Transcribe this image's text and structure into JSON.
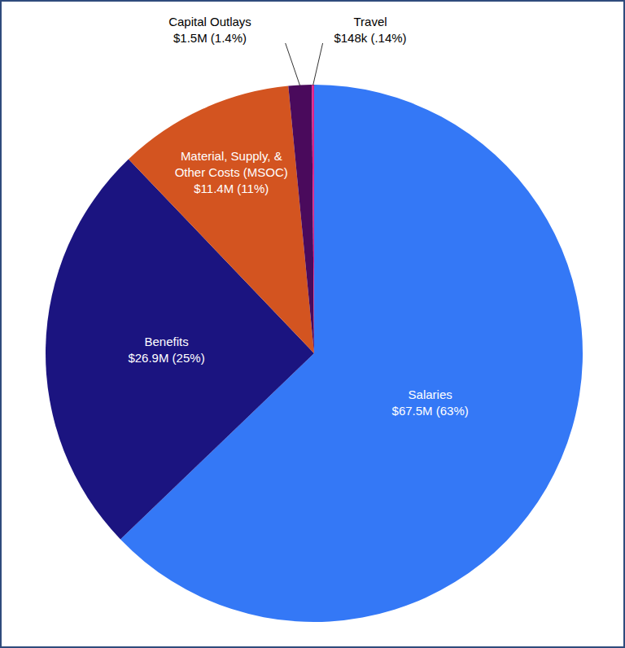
{
  "chart_data": {
    "type": "pie",
    "categories": [
      "Salaries",
      "Benefits",
      "Material, Supply, & Other Costs (MSOC)",
      "Capital Outlays",
      "Travel"
    ],
    "values": [
      67500000,
      26900000,
      11400000,
      1500000,
      148000
    ],
    "value_labels": [
      "$67.5M (63%)",
      "$26.9M (25%)",
      "$11.4M (11%)",
      "$1.5M (1.4%)",
      "$148k (.14%)"
    ],
    "colors": [
      "#3478f6",
      "#1b1480",
      "#d35420",
      "#4a0a5c",
      "#e0218a"
    ],
    "data_labels": true
  }
}
